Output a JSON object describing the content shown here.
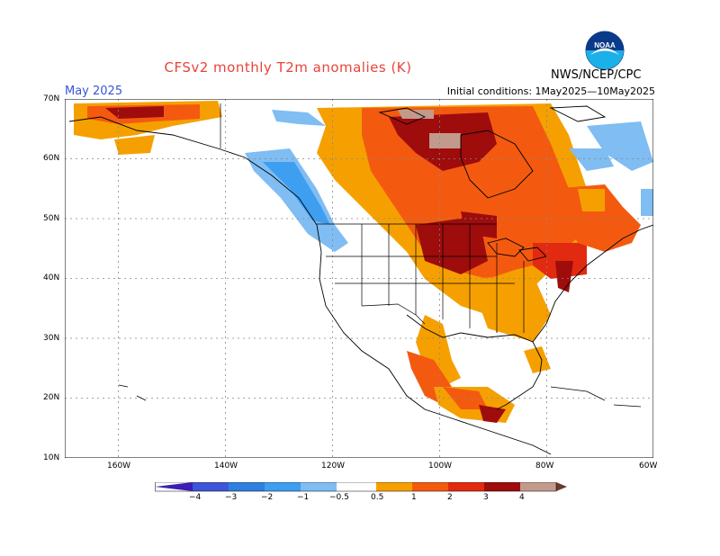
{
  "header": {
    "title": "CFSv2 monthly T2m anomalies (K)",
    "month": "May 2025",
    "initial_conditions": "Initial conditions: 1May2025—10May2025",
    "agency": "NWS/NCEP/CPC",
    "logo_text": "NOAA"
  },
  "axes": {
    "lat_labels": [
      "70N",
      "60N",
      "50N",
      "40N",
      "30N",
      "20N",
      "10N"
    ],
    "lon_labels": [
      "160W",
      "140W",
      "120W",
      "100W",
      "80W",
      "60W"
    ]
  },
  "legend": {
    "ticks": [
      "−4",
      "−3",
      "−2",
      "−1",
      "−0.5",
      "0.5",
      "1",
      "2",
      "3",
      "4"
    ],
    "colors": {
      "neg4": "#3b1fb3",
      "neg3": "#3d56d9",
      "neg2": "#2f7fe0",
      "neg1": "#3e9ef0",
      "neg05": "#7fbdf3",
      "pos05": "#f5a000",
      "pos1": "#f35a10",
      "pos2": "#e12a10",
      "pos3": "#9e0c0c",
      "pos4": "#c29a8c",
      "pos5": "#6a3a2a"
    }
  },
  "map_data": {
    "region": "North America",
    "lat_range": [
      10,
      70
    ],
    "lon_range": [
      -170,
      -60
    ],
    "pattern": "Warm anomalies over central/eastern Canada and north-central US; cool anomalies along Pacific Northwest coast and northeastern Canada"
  }
}
